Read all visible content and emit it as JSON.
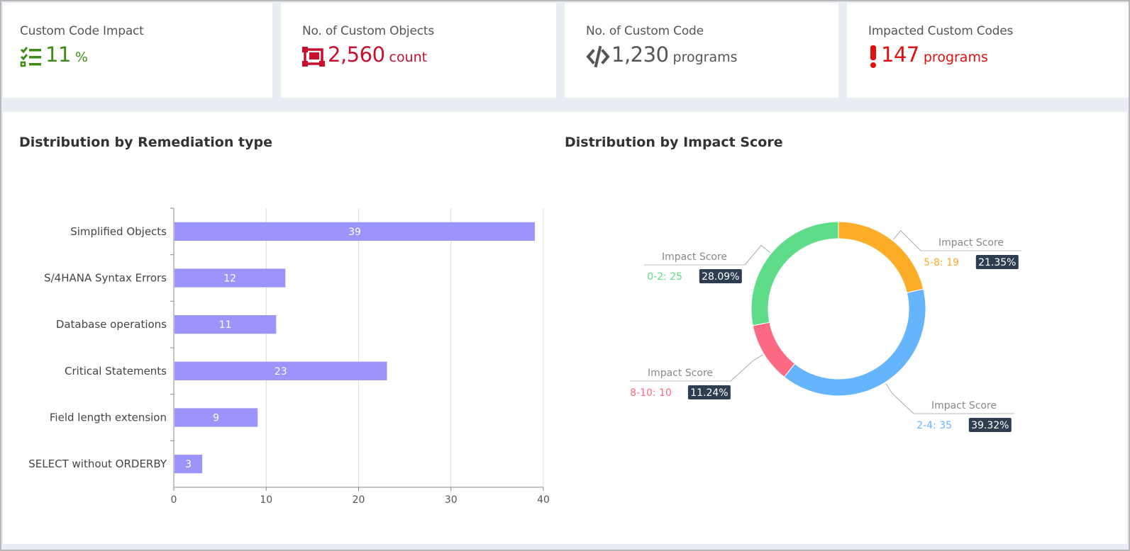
{
  "kpis": [
    {
      "title": "Custom Code Impact",
      "value": "11",
      "unit": "%",
      "color": "#3c8c15",
      "icon": "checklist-icon"
    },
    {
      "title": "No. of Custom Objects",
      "value": "2,560",
      "unit": "count",
      "color": "#c8102e",
      "icon": "object-frame-icon"
    },
    {
      "title": "No. of Custom Code",
      "value": "1,230",
      "unit": "programs",
      "color": "#555555",
      "icon": "code-icon"
    },
    {
      "title": "Impacted Custom Codes",
      "value": "147",
      "unit": "programs",
      "color": "#e01010",
      "icon": "exclamation-icon"
    }
  ],
  "bar_panel": {
    "title": "Distribution by Remediation type"
  },
  "pie_panel": {
    "title": "Distribution by Impact Score"
  },
  "chart_data": [
    {
      "type": "bar",
      "orientation": "horizontal",
      "title": "Distribution by Remediation type",
      "categories": [
        "Simplified Objects",
        "S/4HANA Syntax Errors",
        "Database operations",
        "Critical Statements",
        "Field length extension",
        "SELECT without ORDERBY"
      ],
      "values": [
        39,
        12,
        11,
        23,
        9,
        3
      ],
      "xlim": [
        0,
        40
      ],
      "xticks": [
        "0",
        "10",
        "20",
        "30",
        "40"
      ],
      "bar_color": "#9b95fb",
      "grid": true
    },
    {
      "type": "pie",
      "style": "donut",
      "title": "Distribution by Impact Score",
      "slices": [
        {
          "title": "Impact Score",
          "label": "5-8:  19",
          "value": 19,
          "percent": "21.35%",
          "color": "#fbad27"
        },
        {
          "title": "Impact Score",
          "label": "2-4:  35",
          "value": 35,
          "percent": "39.32%",
          "color": "#66b4fc"
        },
        {
          "title": "Impact Score",
          "label": "8-10:  10",
          "value": 10,
          "percent": "11.24%",
          "color": "#fb6a82"
        },
        {
          "title": "Impact Score",
          "label": "0-2:  25",
          "value": 25,
          "percent": "28.09%",
          "color": "#5fdc87"
        }
      ]
    }
  ]
}
